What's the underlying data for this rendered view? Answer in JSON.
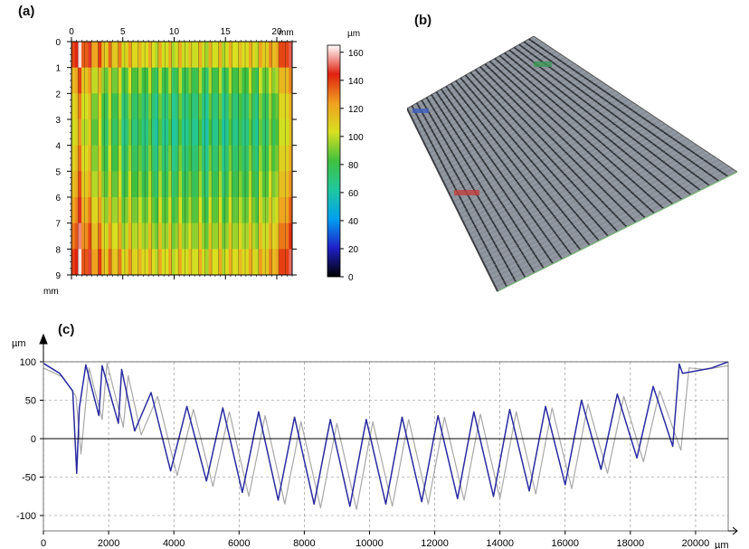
{
  "panels": {
    "a": "(a)",
    "b": "(b)",
    "c": "(c)"
  },
  "chart_data": [
    {
      "type": "heatmap",
      "panel": "(a)",
      "x_unit": "mm",
      "y_unit": "mm",
      "xticks": [
        "0",
        "5",
        "10",
        "15",
        "20"
      ],
      "yticks": [
        "0",
        "1",
        "2",
        "3",
        "4",
        "5",
        "6",
        "7",
        "8",
        "9"
      ],
      "xlim": [
        0,
        21.5
      ],
      "ylim": [
        0,
        9
      ],
      "colorbar": {
        "unit": "µm",
        "ticks": [
          "0",
          "20",
          "40",
          "60",
          "80",
          "100",
          "120",
          "140",
          "160"
        ],
        "range": [
          0,
          165
        ],
        "colors": [
          "#000000",
          "#2020c8",
          "#00a0f0",
          "#20c8a0",
          "#40c040",
          "#d8e020",
          "#f0a020",
          "#e02010",
          "#ffffff"
        ]
      },
      "band_means_um": [
        104,
        82,
        72,
        68,
        74,
        80,
        88,
        96,
        105
      ],
      "column_profile_um": [
        128,
        118,
        104,
        96,
        92,
        88,
        86,
        84,
        83,
        82,
        82,
        81,
        81,
        81,
        82,
        82,
        83,
        84,
        86,
        90,
        102,
        122
      ]
    },
    {
      "type": "line",
      "panel": "(c)",
      "x_unit": "µm",
      "y_unit": "µm",
      "xlim": [
        0,
        21000
      ],
      "ylim": [
        -120,
        100
      ],
      "xticks": [
        "0",
        "2000",
        "4000",
        "6000",
        "8000",
        "10000",
        "12000",
        "14000",
        "16000",
        "18000",
        "20000"
      ],
      "yticks": [
        "100",
        "50",
        "0",
        "-50",
        "-100"
      ],
      "grid": true,
      "series": [
        {
          "color": "#2a2aa0",
          "x": [
            0,
            500,
            900,
            1020,
            1100,
            1300,
            1700,
            1800,
            2300,
            2400,
            2800,
            3300,
            3900,
            4400,
            5000,
            5500,
            6100,
            6600,
            7200,
            7700,
            8300,
            8800,
            9400,
            9900,
            10500,
            11000,
            11600,
            12100,
            12700,
            13200,
            13800,
            14300,
            14900,
            15400,
            16000,
            16500,
            17100,
            17600,
            18200,
            18700,
            19300,
            19500,
            19600,
            20000,
            20500,
            21000
          ],
          "y": [
            98,
            85,
            62,
            -45,
            40,
            96,
            30,
            95,
            20,
            90,
            10,
            60,
            -42,
            42,
            -55,
            40,
            -70,
            35,
            -80,
            28,
            -85,
            25,
            -88,
            25,
            -85,
            28,
            -82,
            30,
            -78,
            35,
            -75,
            38,
            -68,
            42,
            -60,
            50,
            -40,
            58,
            -25,
            68,
            -10,
            97,
            85,
            88,
            92,
            100
          ]
        },
        {
          "color": "#a8a8a8",
          "x": [
            0,
            600,
            1000,
            1150,
            1400,
            1800,
            1950,
            2450,
            2600,
            3000,
            3500,
            4100,
            4600,
            5200,
            5700,
            6300,
            6800,
            7400,
            7900,
            8500,
            9000,
            9600,
            10100,
            10700,
            11200,
            11800,
            12300,
            12900,
            13400,
            14000,
            14500,
            15100,
            15600,
            16200,
            16700,
            17300,
            17800,
            18400,
            18900,
            19550,
            19800,
            20300,
            21000
          ],
          "y": [
            92,
            80,
            55,
            -20,
            92,
            25,
            98,
            15,
            82,
            5,
            55,
            -48,
            38,
            -62,
            35,
            -75,
            30,
            -85,
            22,
            -90,
            20,
            -92,
            22,
            -88,
            25,
            -85,
            28,
            -80,
            32,
            -78,
            35,
            -72,
            40,
            -65,
            45,
            -45,
            55,
            -30,
            62,
            -15,
            92,
            90,
            95
          ]
        }
      ]
    }
  ]
}
